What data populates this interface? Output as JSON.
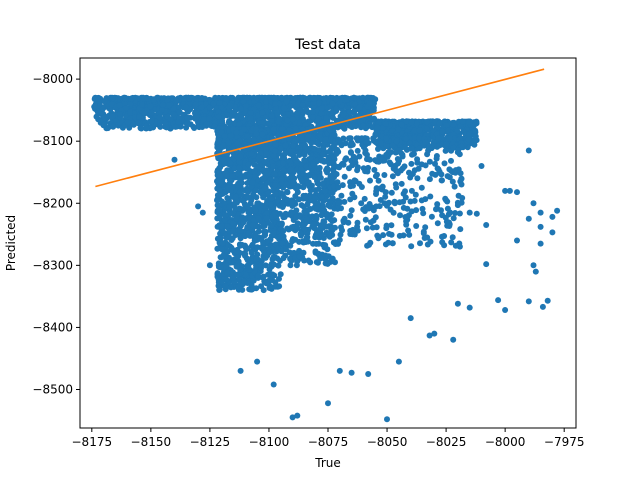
{
  "chart_data": {
    "type": "scatter",
    "title": "Test data",
    "xlabel": "True",
    "ylabel": "Predicted",
    "xlim": [
      -8180,
      -7970
    ],
    "ylim": [
      -8562,
      -7966
    ],
    "xticks": [
      -8175,
      -8150,
      -8125,
      -8100,
      -8075,
      -8050,
      -8025,
      -8000,
      -7975
    ],
    "yticks": [
      -8000,
      -8100,
      -8200,
      -8300,
      -8400,
      -8500
    ],
    "grid": false,
    "legend": "none",
    "series": [
      {
        "kind": "scatter",
        "color": "#1f77b4",
        "description": "dense cloud of predicted vs true values",
        "regions": [
          {
            "x_range": [
              -8174,
              -8055
            ],
            "y_top": -8030,
            "y_bottom": -8080,
            "count": 1500
          },
          {
            "x_range": [
              -8055,
              -8012
            ],
            "y_top": -8068,
            "y_bottom": -8110,
            "count": 500
          },
          {
            "x_range": [
              -8122,
              -8095
            ],
            "y_top": -8080,
            "y_bottom": -8340,
            "count": 1300
          },
          {
            "x_range": [
              -8095,
              -8072
            ],
            "y_top": -8080,
            "y_bottom": -8300,
            "count": 700
          },
          {
            "x_range": [
              -8072,
              -8018
            ],
            "y_top": -8095,
            "y_bottom": -8270,
            "count": 400
          }
        ],
        "outliers": [
          [
            -8090,
            -8545
          ],
          [
            -8088,
            -8542
          ],
          [
            -8050,
            -8548
          ],
          [
            -8065,
            -8473
          ],
          [
            -8058,
            -8475
          ],
          [
            -8098,
            -8492
          ],
          [
            -8075,
            -8522
          ],
          [
            -8112,
            -8470
          ],
          [
            -8105,
            -8455
          ],
          [
            -8070,
            -8470
          ],
          [
            -8045,
            -8455
          ],
          [
            -8032,
            -8413
          ],
          [
            -8022,
            -8420
          ],
          [
            -8040,
            -8385
          ],
          [
            -8030,
            -8410
          ],
          [
            -8020,
            -8362
          ],
          [
            -8015,
            -8368
          ],
          [
            -8010,
            -8140
          ],
          [
            -8008,
            -8235
          ],
          [
            -8008,
            -8298
          ],
          [
            -8003,
            -8356
          ],
          [
            -8000,
            -8372
          ],
          [
            -8000,
            -8180
          ],
          [
            -7995,
            -8182
          ],
          [
            -7995,
            -8260
          ],
          [
            -7990,
            -8225
          ],
          [
            -7990,
            -8358
          ],
          [
            -7988,
            -8300
          ],
          [
            -7985,
            -8215
          ],
          [
            -7985,
            -8238
          ],
          [
            -7985,
            -8265
          ],
          [
            -7987,
            -8310
          ],
          [
            -7980,
            -8247
          ],
          [
            -7980,
            -8222
          ],
          [
            -7978,
            -8212
          ],
          [
            -7984,
            -8367
          ],
          [
            -7982,
            -8357
          ],
          [
            -7988,
            -8200
          ],
          [
            -7990,
            -8115
          ],
          [
            -8012,
            -8217
          ],
          [
            -8015,
            -8215
          ],
          [
            -8020,
            -8203
          ],
          [
            -8025,
            -8195
          ],
          [
            -7998,
            -8180
          ],
          [
            -8140,
            -8130
          ],
          [
            -8128,
            -8215
          ],
          [
            -8130,
            -8205
          ],
          [
            -8120,
            -8237
          ],
          [
            -8118,
            -8300
          ],
          [
            -8125,
            -8300
          ]
        ]
      },
      {
        "kind": "line",
        "color": "#ff7f0e",
        "points": [
          [
            -8173.5,
            -8173
          ],
          [
            -7983.5,
            -7984
          ]
        ]
      }
    ]
  }
}
